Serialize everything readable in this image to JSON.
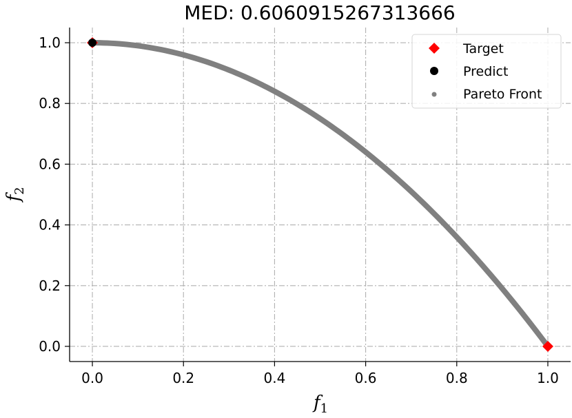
{
  "chart_data": {
    "type": "scatter",
    "title": "MED: 0.6060915267313666",
    "xlabel": {
      "main": "f",
      "sub": "1"
    },
    "ylabel": {
      "main": "f",
      "sub": "2"
    },
    "xlim": [
      -0.05,
      1.05
    ],
    "ylim": [
      -0.05,
      1.05
    ],
    "xticks": [
      "0.0",
      "0.2",
      "0.4",
      "0.6",
      "0.8",
      "1.0"
    ],
    "yticks": [
      "0.0",
      "0.2",
      "0.4",
      "0.6",
      "0.8",
      "1.0"
    ],
    "grid": true,
    "legend_position": "top-right",
    "legend": [
      "Target",
      "Predict",
      "Pareto Front"
    ],
    "series": [
      {
        "name": "Pareto Front",
        "marker": "dot",
        "color": "#808080",
        "curve": "f2 = 1 - f1^2",
        "x_range": [
          0.0,
          1.0
        ]
      },
      {
        "name": "Target",
        "marker": "diamond",
        "color": "#ff0000",
        "points": [
          [
            0.0,
            1.0
          ],
          [
            1.0,
            0.0
          ]
        ]
      },
      {
        "name": "Predict",
        "marker": "circle",
        "color": "#000000",
        "points": [
          [
            0.0,
            1.0
          ]
        ]
      }
    ]
  }
}
